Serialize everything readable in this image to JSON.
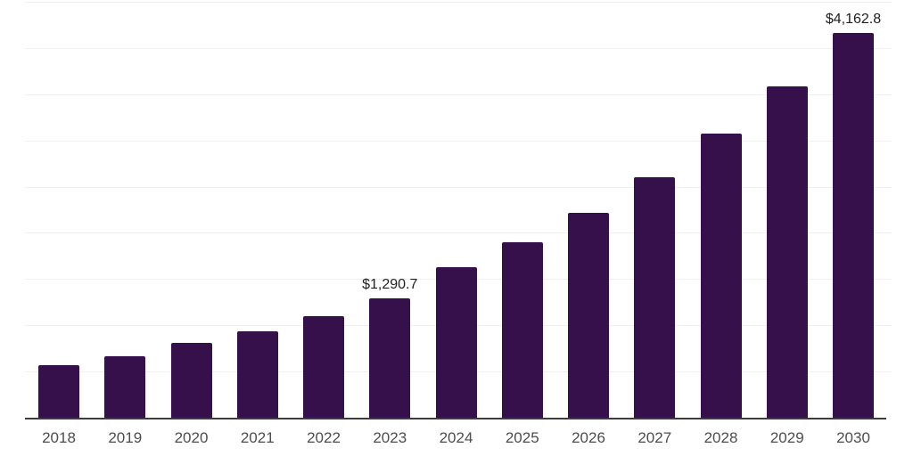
{
  "chart_data": {
    "type": "bar",
    "title": "",
    "xlabel": "",
    "ylabel": "",
    "categories": [
      "2018",
      "2019",
      "2020",
      "2021",
      "2022",
      "2023",
      "2024",
      "2025",
      "2026",
      "2027",
      "2028",
      "2029",
      "2030"
    ],
    "values": [
      570,
      665,
      810,
      930,
      1100,
      1290.7,
      1630,
      1895,
      2220,
      2605,
      3070,
      3580,
      4162.8
    ],
    "data_labels": [
      {
        "category": "2023",
        "text": "$1,290.7"
      },
      {
        "category": "2030",
        "text": "$4,162.8"
      }
    ],
    "ylim": [
      0,
      4500
    ],
    "gridline_step": 500,
    "grid": "horizontal",
    "legend": "none",
    "y_axis_tick_labels_visible": false,
    "colors": {
      "bar": "#36104a",
      "gridline": "#f0f0f0",
      "axis_line": "#3d3d3d",
      "tick_label": "#4d4d4d",
      "data_label": "#1f1f1f",
      "background": "#ffffff"
    }
  }
}
